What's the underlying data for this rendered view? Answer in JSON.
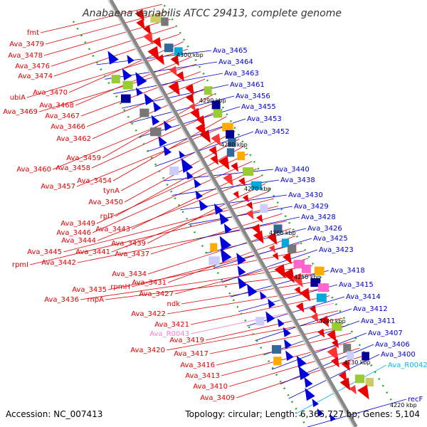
{
  "title": "Anabaena variabilis ATCC 29413, complete genome",
  "accession": "Accession: NC_007413",
  "topology": "Topology: circular; Length: 6,365,727 bp; Genes: 5,104",
  "colors": {
    "forward": "#ee0000",
    "reverse": "#0000dd",
    "rna": "#ff88cc",
    "trna": "#00ccff",
    "backbone": "#888888",
    "dots": "#22aa22"
  },
  "ticks": [
    "4300 kbp",
    "4290 kbp",
    "4280 kbp",
    "4270 kbp",
    "4260 kbp",
    "4250 kbp",
    "4240 kbp",
    "4230 kbp",
    "4220 kbp"
  ],
  "left_labels": [
    {
      "text": "fmt",
      "color": "#dd0000"
    },
    {
      "text": "Ava_3479",
      "color": "#dd0000"
    },
    {
      "text": "Ava_3478",
      "color": "#dd0000"
    },
    {
      "text": "Ava_3476",
      "color": "#dd0000"
    },
    {
      "text": "Ava_3474",
      "color": "#dd0000"
    },
    {
      "text": "Ava_3470",
      "color": "#dd0000"
    },
    {
      "text": "ubiA",
      "color": "#dd0000"
    },
    {
      "text": "Ava_3468",
      "color": "#dd0000"
    },
    {
      "text": "Ava_3469",
      "color": "#dd0000"
    },
    {
      "text": "Ava_3467",
      "color": "#dd0000"
    },
    {
      "text": "Ava_3466",
      "color": "#dd0000"
    },
    {
      "text": "Ava_3462",
      "color": "#dd0000"
    },
    {
      "text": "Ava_3459",
      "color": "#dd0000"
    },
    {
      "text": "Ava_3460",
      "color": "#dd0000"
    },
    {
      "text": "Ava_3458",
      "color": "#dd0000"
    },
    {
      "text": "Ava_3454",
      "color": "#dd0000"
    },
    {
      "text": "Ava_3457",
      "color": "#dd0000"
    },
    {
      "text": "tynA",
      "color": "#dd0000"
    },
    {
      "text": "Ava_3450",
      "color": "#dd0000"
    },
    {
      "text": "rplT",
      "color": "#dd0000"
    },
    {
      "text": "Ava_3449",
      "color": "#dd0000"
    },
    {
      "text": "Ava_3446",
      "color": "#dd0000"
    },
    {
      "text": "Ava_3443",
      "color": "#dd0000"
    },
    {
      "text": "Ava_3444",
      "color": "#dd0000"
    },
    {
      "text": "Ava_3439",
      "color": "#dd0000"
    },
    {
      "text": "Ava_3441",
      "color": "#dd0000"
    },
    {
      "text": "Ava_3445",
      "color": "#dd0000"
    },
    {
      "text": "rpmI",
      "color": "#dd0000"
    },
    {
      "text": "Ava_3437",
      "color": "#dd0000"
    },
    {
      "text": "Ava_3442",
      "color": "#dd0000"
    },
    {
      "text": "Ava_3434",
      "color": "#dd0000"
    },
    {
      "text": "Ava_3431",
      "color": "#dd0000"
    },
    {
      "text": "rpmH",
      "color": "#dd0000"
    },
    {
      "text": "Ava_3435",
      "color": "#dd0000"
    },
    {
      "text": "Ava_3427",
      "color": "#dd0000"
    },
    {
      "text": "Ava_3436",
      "color": "#dd0000"
    },
    {
      "text": "rnpA",
      "color": "#dd0000"
    },
    {
      "text": "ndk",
      "color": "#dd0000"
    },
    {
      "text": "Ava_3422",
      "color": "#dd0000"
    },
    {
      "text": "Ava_3421",
      "color": "#dd0000"
    },
    {
      "text": "Ava_R0043",
      "color": "#ff77cc"
    },
    {
      "text": "Ava_3419",
      "color": "#dd0000"
    },
    {
      "text": "Ava_3420",
      "color": "#dd0000"
    },
    {
      "text": "Ava_3417",
      "color": "#dd0000"
    },
    {
      "text": "Ava_3416",
      "color": "#dd0000"
    },
    {
      "text": "Ava_3413",
      "color": "#dd0000"
    },
    {
      "text": "Ava_3410",
      "color": "#dd0000"
    },
    {
      "text": "Ava_3409",
      "color": "#dd0000"
    }
  ],
  "right_labels": [
    {
      "text": "Ava_3465",
      "color": "#0000cc"
    },
    {
      "text": "Ava_3464",
      "color": "#0000cc"
    },
    {
      "text": "Ava_3463",
      "color": "#0000cc"
    },
    {
      "text": "Ava_3461",
      "color": "#0000cc"
    },
    {
      "text": "Ava_3456",
      "color": "#0000cc"
    },
    {
      "text": "Ava_3455",
      "color": "#0000cc"
    },
    {
      "text": "Ava_3453",
      "color": "#0000cc"
    },
    {
      "text": "Ava_3452",
      "color": "#0000cc"
    },
    {
      "text": "Ava_3440",
      "color": "#0000cc"
    },
    {
      "text": "Ava_3438",
      "color": "#0000cc"
    },
    {
      "text": "Ava_3430",
      "color": "#0000cc"
    },
    {
      "text": "Ava_3429",
      "color": "#0000cc"
    },
    {
      "text": "Ava_3428",
      "color": "#0000cc"
    },
    {
      "text": "Ava_3426",
      "color": "#0000cc"
    },
    {
      "text": "Ava_3425",
      "color": "#0000cc"
    },
    {
      "text": "Ava_3423",
      "color": "#0000cc"
    },
    {
      "text": "Ava_3418",
      "color": "#0000cc"
    },
    {
      "text": "Ava_3415",
      "color": "#0000cc"
    },
    {
      "text": "Ava_3414",
      "color": "#0000cc"
    },
    {
      "text": "Ava_3412",
      "color": "#0000cc"
    },
    {
      "text": "Ava_3411",
      "color": "#0000cc"
    },
    {
      "text": "Ava_3407",
      "color": "#0000cc"
    },
    {
      "text": "Ava_3406",
      "color": "#0000cc"
    },
    {
      "text": "Ava_3400",
      "color": "#0000cc"
    },
    {
      "text": "Ava_R0042",
      "color": "#00bbee"
    },
    {
      "text": "recF",
      "color": "#0000cc"
    }
  ]
}
